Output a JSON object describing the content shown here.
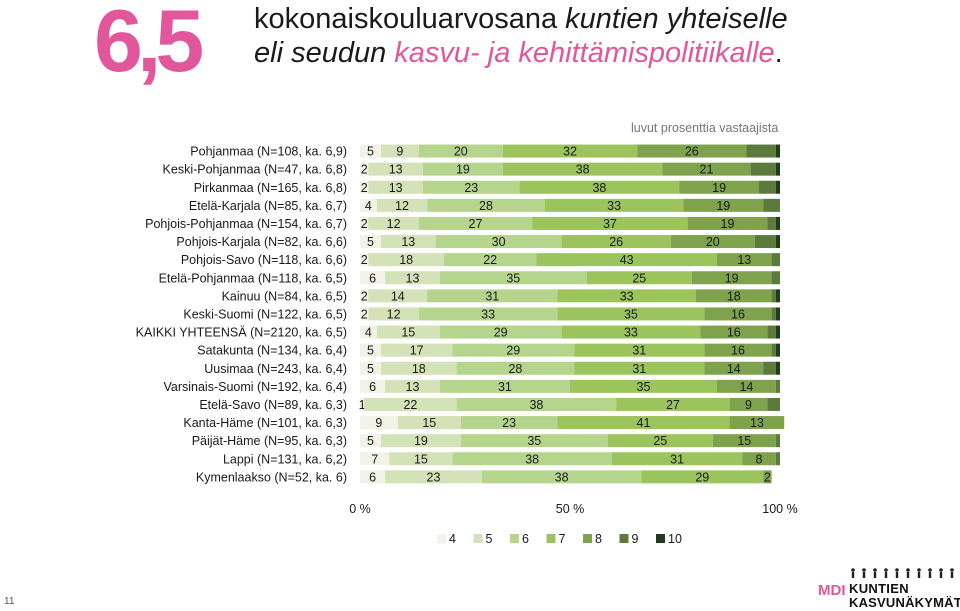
{
  "header": {
    "grade": "6,5",
    "title_line1_plain": "kokonaiskouluarvosana ",
    "title_line1_italic": "kuntien yhteiselle",
    "title_line2_italic": "eli seudun ",
    "title_line2_pink": "kasvu- ja kehittämispolitiikalle",
    "title_line2_end": "."
  },
  "note": "luvut prosenttia vastaajista",
  "page_number": "11",
  "logo": {
    "mdi": "MDI",
    "line1": "KUNTIEN",
    "line2": "KASVUNÄKYMÄT"
  },
  "colors": {
    "4": "#f2f2e6",
    "5": "#d4e2b8",
    "6": "#b6d58c",
    "7": "#9bc45c",
    "8": "#7fa24c",
    "9": "#5a7b3c",
    "10": "#1f3d1a"
  },
  "chart_data": {
    "type": "bar",
    "orientation": "horizontal",
    "stacked": true,
    "percent": true,
    "xlabel_ticks": [
      "0 %",
      "50 %",
      "100 %"
    ],
    "xlim": [
      0,
      100
    ],
    "legend_position": "bottom",
    "series_names": [
      "4",
      "5",
      "6",
      "7",
      "8",
      "9",
      "10"
    ],
    "categories": [
      "Pohjanmaa (N=108, ka. 6,9)",
      "Keski-Pohjanmaa (N=47, ka. 6,8)",
      "Pirkanmaa (N=165, ka. 6,8)",
      "Etelä-Karjala (N=85, ka. 6,7)",
      "Pohjois-Pohjanmaa (N=154, ka. 6,7)",
      "Pohjois-Karjala (N=82, ka. 6,6)",
      "Pohjois-Savo (N=118, ka. 6,6)",
      "Etelä-Pohjanmaa (N=118, ka. 6,5)",
      "Kainuu (N=84, ka. 6,5)",
      "Keski-Suomi (N=122, ka. 6,5)",
      "KAIKKI YHTEENSÄ (N=2120, ka. 6,5)",
      "Satakunta (N=134, ka. 6,4)",
      "Uusimaa (N=243, ka. 6,4)",
      "Varsinais-Suomi (N=192, ka. 6,4)",
      "Etelä-Savo (N=89, ka. 6,3)",
      "Kanta-Häme (N=101, ka. 6,3)",
      "Päijät-Häme (N=95, ka. 6,3)",
      "Lappi (N=131, ka. 6,2)",
      "Kymenlaakso (N=52, ka. 6)"
    ],
    "values": [
      [
        5,
        9,
        20,
        32,
        26,
        7,
        1
      ],
      [
        2,
        13,
        19,
        38,
        21,
        6,
        1
      ],
      [
        2,
        13,
        23,
        38,
        19,
        4,
        1
      ],
      [
        4,
        12,
        28,
        33,
        19,
        4,
        0
      ],
      [
        2,
        12,
        27,
        37,
        19,
        2,
        1
      ],
      [
        5,
        13,
        30,
        26,
        20,
        5,
        1
      ],
      [
        2,
        18,
        22,
        43,
        13,
        2,
        0
      ],
      [
        6,
        13,
        35,
        25,
        19,
        2,
        0
      ],
      [
        2,
        14,
        31,
        33,
        18,
        1,
        1
      ],
      [
        2,
        12,
        33,
        35,
        16,
        1,
        1
      ],
      [
        4,
        15,
        29,
        33,
        16,
        2,
        1
      ],
      [
        5,
        17,
        29,
        31,
        16,
        1,
        1
      ],
      [
        5,
        18,
        28,
        31,
        14,
        3,
        1
      ],
      [
        6,
        13,
        31,
        35,
        14,
        1,
        0
      ],
      [
        1,
        22,
        38,
        27,
        9,
        3,
        0
      ],
      [
        9,
        15,
        23,
        41,
        13,
        0,
        0
      ],
      [
        5,
        19,
        35,
        25,
        15,
        1,
        0
      ],
      [
        7,
        15,
        38,
        31,
        8,
        1,
        0
      ],
      [
        6,
        23,
        38,
        29,
        2,
        0,
        0
      ]
    ],
    "shown_labels": [
      [
        5,
        9,
        20,
        32,
        26,
        null,
        null
      ],
      [
        2,
        13,
        19,
        38,
        21,
        null,
        null
      ],
      [
        2,
        13,
        23,
        38,
        19,
        null,
        null
      ],
      [
        4,
        12,
        28,
        33,
        19,
        null,
        null
      ],
      [
        2,
        12,
        27,
        37,
        19,
        null,
        null
      ],
      [
        5,
        13,
        30,
        26,
        20,
        null,
        null
      ],
      [
        2,
        18,
        22,
        43,
        13,
        null,
        null
      ],
      [
        6,
        13,
        35,
        25,
        19,
        null,
        null
      ],
      [
        2,
        14,
        31,
        33,
        18,
        null,
        null
      ],
      [
        2,
        12,
        33,
        35,
        16,
        null,
        null
      ],
      [
        4,
        15,
        29,
        33,
        16,
        null,
        null
      ],
      [
        5,
        17,
        29,
        31,
        16,
        null,
        null
      ],
      [
        5,
        18,
        28,
        31,
        14,
        null,
        null
      ],
      [
        6,
        13,
        31,
        35,
        14,
        null,
        null
      ],
      [
        1,
        22,
        38,
        27,
        9,
        null,
        null
      ],
      [
        9,
        15,
        23,
        41,
        13,
        null,
        null
      ],
      [
        5,
        19,
        35,
        25,
        15,
        null,
        null
      ],
      [
        7,
        15,
        38,
        31,
        8,
        null,
        null
      ],
      [
        6,
        23,
        38,
        29,
        2,
        null,
        null
      ]
    ]
  }
}
